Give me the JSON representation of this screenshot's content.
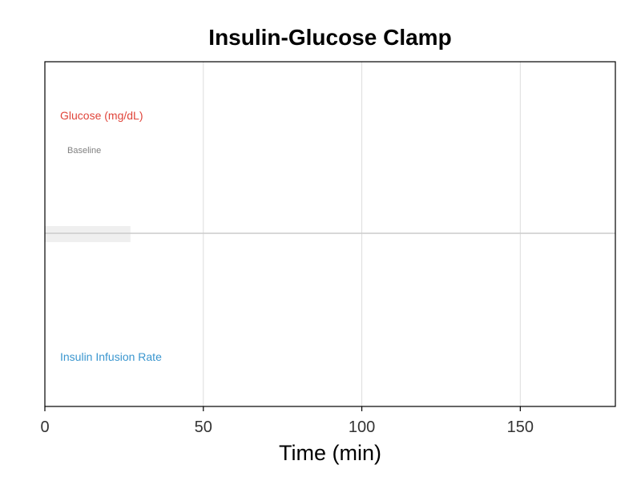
{
  "chart_data": {
    "type": "line",
    "title": "Insulin-Glucose Clamp",
    "xlabel": "Time (min)",
    "ylabel": "",
    "xlim": [
      0,
      180
    ],
    "xticks": [
      0,
      50,
      100,
      150
    ],
    "grid": true,
    "series": [
      {
        "name": "Glucose (mg/dL)",
        "color": "#e0443a",
        "x": [],
        "y": []
      },
      {
        "name": "Insulin Infusion Rate",
        "color": "#3a96cf",
        "x": [],
        "y": []
      }
    ],
    "baseline_band": {
      "label": "Baseline",
      "x_start": 0,
      "x_end": 27
    },
    "colors": {
      "grid": "#dcdcdc",
      "divider": "#cccccc",
      "band": "#efefef",
      "axis": "#000000"
    }
  }
}
